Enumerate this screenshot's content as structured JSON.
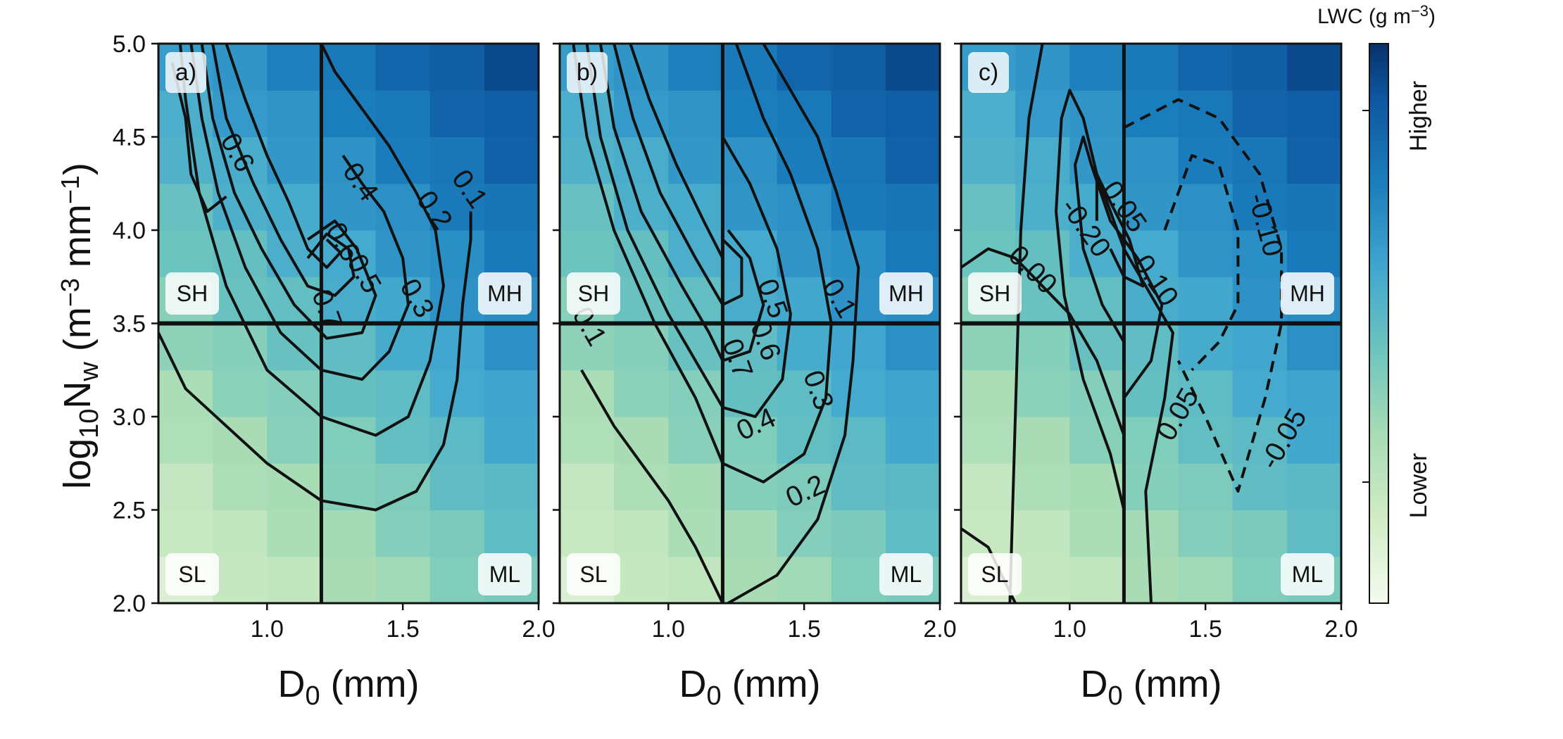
{
  "chart_data": [
    {
      "type": "heatmap",
      "panel": "a)",
      "xlabel": "D₀ (mm)",
      "ylabel": "log₁₀N_w (m⁻³ mm⁻¹)",
      "xlim": [
        0.6,
        2.0
      ],
      "ylim": [
        2.0,
        5.0
      ],
      "xticks": [
        "1.0",
        "1.5",
        "2.0"
      ],
      "yticks": [
        "2.0",
        "2.5",
        "3.0",
        "3.5",
        "4.0",
        "4.5",
        "5.0"
      ],
      "thresholds": {
        "D0": 1.2,
        "log10Nw": 3.5
      },
      "quadrants": [
        "SH",
        "MH",
        "SL",
        "ML"
      ],
      "contours": [
        {
          "level": "0.1",
          "points": [
            [
              0.6,
              3.45
            ],
            [
              0.7,
              3.15
            ],
            [
              0.85,
              2.95
            ],
            [
              1.0,
              2.75
            ],
            [
              1.2,
              2.55
            ],
            [
              1.4,
              2.5
            ],
            [
              1.55,
              2.6
            ],
            [
              1.65,
              2.85
            ],
            [
              1.7,
              3.2
            ],
            [
              1.72,
              3.6
            ],
            [
              1.75,
              3.95
            ],
            [
              1.75,
              4.1
            ]
          ]
        },
        {
          "level": "0.2",
          "points": [
            [
              0.68,
              5.0
            ],
            [
              0.7,
              4.7
            ],
            [
              0.75,
              4.2
            ],
            [
              0.85,
              3.7
            ],
            [
              1.0,
              3.25
            ],
            [
              1.2,
              3.0
            ],
            [
              1.4,
              2.9
            ],
            [
              1.52,
              3.0
            ],
            [
              1.6,
              3.3
            ],
            [
              1.65,
              3.7
            ],
            [
              1.62,
              4.0
            ],
            [
              1.55,
              4.2
            ],
            [
              1.45,
              4.45
            ],
            [
              1.35,
              4.65
            ],
            [
              1.25,
              4.85
            ],
            [
              1.2,
              5.0
            ]
          ]
        },
        {
          "level": "0.3",
          "points": [
            [
              0.72,
              5.0
            ],
            [
              0.76,
              4.6
            ],
            [
              0.82,
              4.2
            ],
            [
              0.92,
              3.8
            ],
            [
              1.05,
              3.45
            ],
            [
              1.2,
              3.25
            ],
            [
              1.35,
              3.2
            ],
            [
              1.45,
              3.35
            ],
            [
              1.52,
              3.6
            ],
            [
              1.5,
              3.85
            ],
            [
              1.43,
              4.1
            ],
            [
              1.35,
              4.25
            ],
            [
              1.28,
              4.4
            ]
          ]
        },
        {
          "level": "0.4",
          "points": [
            [
              0.76,
              5.0
            ],
            [
              0.8,
              4.6
            ],
            [
              0.88,
              4.2
            ],
            [
              0.98,
              3.9
            ],
            [
              1.1,
              3.6
            ],
            [
              1.22,
              3.42
            ],
            [
              1.35,
              3.45
            ],
            [
              1.4,
              3.65
            ],
            [
              1.33,
              3.9
            ],
            [
              1.25,
              4.05
            ],
            [
              1.15,
              3.95
            ]
          ]
        },
        {
          "level": "0.5",
          "points": [
            [
              0.8,
              5.0
            ],
            [
              0.85,
              4.6
            ],
            [
              0.95,
              4.25
            ],
            [
              1.05,
              3.95
            ],
            [
              1.15,
              3.7
            ],
            [
              1.25,
              3.65
            ],
            [
              1.32,
              3.75
            ],
            [
              1.3,
              3.9
            ],
            [
              1.22,
              3.98
            ],
            [
              1.15,
              3.85
            ]
          ]
        },
        {
          "level": "0.6",
          "points": [
            [
              0.85,
              5.0
            ],
            [
              0.92,
              4.7
            ],
            [
              1.0,
              4.4
            ],
            [
              1.08,
              4.15
            ],
            [
              1.15,
              3.9
            ],
            [
              1.22,
              3.8
            ],
            [
              1.27,
              3.88
            ],
            [
              1.22,
              3.95
            ]
          ]
        },
        {
          "level": "0.6",
          "points": [
            [
              0.65,
              4.9
            ],
            [
              0.7,
              4.6
            ],
            [
              0.72,
              4.3
            ],
            [
              0.78,
              4.1
            ],
            [
              0.85,
              4.18
            ]
          ]
        }
      ],
      "contour_labels": [
        "0.6",
        "0.4",
        "0.2",
        "0.1",
        "0.6",
        "0.5",
        "0.3",
        "0.7"
      ]
    },
    {
      "type": "heatmap",
      "panel": "b)",
      "xlabel": "D₀ (mm)",
      "xlim": [
        0.6,
        2.0
      ],
      "ylim": [
        2.0,
        5.0
      ],
      "xticks": [
        "1.0",
        "1.5",
        "2.0"
      ],
      "thresholds": {
        "D0": 1.2,
        "log10Nw": 3.5
      },
      "quadrants": [
        "SH",
        "MH",
        "SL",
        "ML"
      ],
      "contours": [
        {
          "level": "0.1",
          "points": [
            [
              0.68,
              3.25
            ],
            [
              0.8,
              2.95
            ],
            [
              0.9,
              2.75
            ],
            [
              1.0,
              2.55
            ],
            [
              1.1,
              2.3
            ],
            [
              1.2,
              2.0
            ]
          ]
        },
        {
          "level": "0.1",
          "points": [
            [
              1.22,
              2.0
            ],
            [
              1.4,
              2.15
            ],
            [
              1.55,
              2.45
            ],
            [
              1.65,
              2.9
            ],
            [
              1.68,
              3.3
            ],
            [
              1.7,
              3.8
            ],
            [
              1.62,
              4.2
            ],
            [
              1.55,
              4.5
            ],
            [
              1.45,
              4.75
            ],
            [
              1.35,
              5.0
            ]
          ]
        },
        {
          "level": "0.2",
          "points": [
            [
              0.65,
              5.0
            ],
            [
              0.7,
              4.5
            ],
            [
              0.8,
              4.0
            ],
            [
              0.95,
              3.5
            ],
            [
              1.1,
              3.1
            ],
            [
              1.2,
              2.75
            ],
            [
              1.35,
              2.65
            ],
            [
              1.5,
              2.8
            ],
            [
              1.58,
              3.1
            ],
            [
              1.6,
              3.5
            ],
            [
              1.55,
              3.9
            ],
            [
              1.45,
              4.3
            ],
            [
              1.35,
              4.6
            ],
            [
              1.25,
              5.0
            ]
          ]
        },
        {
          "level": "0.3",
          "points": [
            [
              0.7,
              5.0
            ],
            [
              0.75,
              4.5
            ],
            [
              0.85,
              4.0
            ],
            [
              1.0,
              3.55
            ],
            [
              1.12,
              3.25
            ],
            [
              1.2,
              3.05
            ],
            [
              1.32,
              3.0
            ],
            [
              1.42,
              3.2
            ],
            [
              1.45,
              3.55
            ],
            [
              1.4,
              3.9
            ],
            [
              1.3,
              4.25
            ],
            [
              1.2,
              4.5
            ]
          ]
        },
        {
          "level": "0.4",
          "points": [
            [
              0.75,
              5.0
            ],
            [
              0.8,
              4.55
            ],
            [
              0.9,
              4.1
            ],
            [
              1.05,
              3.7
            ],
            [
              1.15,
              3.45
            ],
            [
              1.2,
              3.3
            ],
            [
              1.3,
              3.35
            ],
            [
              1.35,
              3.6
            ],
            [
              1.3,
              3.85
            ],
            [
              1.22,
              4.0
            ]
          ]
        },
        {
          "level": "0.5",
          "points": [
            [
              0.8,
              5.0
            ],
            [
              0.87,
              4.6
            ],
            [
              0.97,
              4.2
            ],
            [
              1.1,
              3.85
            ],
            [
              1.2,
              3.6
            ],
            [
              1.27,
              3.65
            ],
            [
              1.27,
              3.85
            ],
            [
              1.2,
              3.95
            ]
          ]
        },
        {
          "level": "0.6",
          "points": [
            [
              0.86,
              5.0
            ],
            [
              0.93,
              4.7
            ],
            [
              1.03,
              4.35
            ],
            [
              1.13,
              4.05
            ],
            [
              1.2,
              3.85
            ]
          ]
        }
      ],
      "contour_labels": [
        "0.1",
        "0.5",
        "0.1",
        "0.3",
        "0.4",
        "0.2",
        "0.7",
        "0.6"
      ]
    },
    {
      "type": "heatmap",
      "panel": "c)",
      "xlabel": "D₀ (mm)",
      "xlim": [
        0.6,
        2.0
      ],
      "ylim": [
        2.0,
        5.0
      ],
      "xticks": [
        "1.0",
        "1.5",
        "2.0"
      ],
      "thresholds": {
        "D0": 1.2,
        "log10Nw": 3.5
      },
      "quadrants": [
        "SH",
        "MH",
        "SL",
        "ML"
      ],
      "contours": [
        {
          "level": "0.00",
          "points": [
            [
              0.6,
              3.8
            ],
            [
              0.7,
              3.9
            ],
            [
              0.8,
              3.85
            ],
            [
              0.9,
              3.7
            ],
            [
              1.0,
              3.55
            ],
            [
              1.1,
              3.3
            ],
            [
              1.2,
              2.9
            ]
          ]
        },
        {
          "level": "0.05",
          "points": [
            [
              0.6,
              2.4
            ],
            [
              0.7,
              2.3
            ],
            [
              0.8,
              2.0
            ]
          ]
        },
        {
          "level": "0.05",
          "points": [
            [
              0.78,
              2.0
            ],
            [
              0.8,
              3.0
            ],
            [
              0.82,
              4.0
            ],
            [
              0.85,
              4.6
            ],
            [
              0.9,
              5.0
            ]
          ]
        },
        {
          "level": "0.05",
          "points": [
            [
              1.3,
              2.0
            ],
            [
              1.28,
              2.6
            ],
            [
              1.35,
              3.1
            ],
            [
              1.38,
              3.45
            ],
            [
              1.3,
              3.65
            ],
            [
              1.2,
              3.9
            ],
            [
              1.1,
              4.3
            ],
            [
              1.05,
              4.6
            ],
            [
              1.0,
              4.75
            ],
            [
              0.97,
              4.6
            ],
            [
              0.95,
              4.1
            ],
            [
              0.98,
              3.65
            ],
            [
              1.05,
              3.2
            ],
            [
              1.15,
              2.8
            ],
            [
              1.2,
              2.5
            ]
          ]
        },
        {
          "level": "0.10",
          "points": [
            [
              1.2,
              3.1
            ],
            [
              1.3,
              3.3
            ],
            [
              1.34,
              3.6
            ],
            [
              1.25,
              3.85
            ],
            [
              1.15,
              4.05
            ],
            [
              1.08,
              4.35
            ],
            [
              1.05,
              4.5
            ],
            [
              1.02,
              4.35
            ],
            [
              1.05,
              3.9
            ],
            [
              1.12,
              3.6
            ],
            [
              1.2,
              3.4
            ]
          ]
        },
        {
          "level": "0.20",
          "points": [
            [
              1.15,
              3.9
            ],
            [
              1.2,
              3.75
            ],
            [
              1.27,
              3.7
            ],
            [
              1.22,
              3.95
            ],
            [
              1.15,
              4.15
            ],
            [
              1.1,
              4.3
            ],
            [
              1.1,
              4.05
            ]
          ]
        },
        {
          "level": "-0.05",
          "points": [
            [
              1.2,
              4.55
            ],
            [
              1.4,
              4.7
            ],
            [
              1.55,
              4.6
            ],
            [
              1.7,
              4.3
            ],
            [
              1.78,
              3.9
            ],
            [
              1.78,
              3.5
            ],
            [
              1.72,
              3.1
            ],
            [
              1.62,
              2.6
            ],
            [
              1.5,
              3.0
            ],
            [
              1.4,
              3.3
            ]
          ],
          "dashed": true
        },
        {
          "level": "-0.10",
          "points": [
            [
              1.35,
              4.0
            ],
            [
              1.45,
              4.4
            ],
            [
              1.55,
              4.35
            ],
            [
              1.62,
              4.0
            ],
            [
              1.62,
              3.6
            ],
            [
              1.55,
              3.4
            ],
            [
              1.45,
              3.25
            ]
          ],
          "dashed": true
        }
      ],
      "contour_labels": [
        "0.00",
        "-0.20",
        "0.10",
        "0.05",
        "-0.05",
        "-0.10",
        "0.05"
      ]
    }
  ],
  "colorbar": {
    "title": "LWC (g m⁻³)",
    "high_label": "Higher",
    "low_label": "Lower",
    "colors": [
      "#f4fbee",
      "#d1ecc6",
      "#a8dcb5",
      "#6ec5be",
      "#40a6cf",
      "#1b7ebc",
      "#0e58a1",
      "#08306b"
    ]
  },
  "axes_text": {
    "ylabel_main": "log",
    "ylabel_sub": "10",
    "ylabel_N": "N",
    "ylabel_Nsub": "w",
    "ylabel_unit1": " (m",
    "ylabel_exp1": "−3",
    "ylabel_unit2": " mm",
    "ylabel_exp2": "−1",
    "ylabel_close": ")",
    "xlabel_D": "D",
    "xlabel_sub": "0",
    "xlabel_unit": " (mm)",
    "cbar_title_base": "LWC (g m",
    "cbar_title_exp": "−3",
    "cbar_title_close": ")"
  }
}
